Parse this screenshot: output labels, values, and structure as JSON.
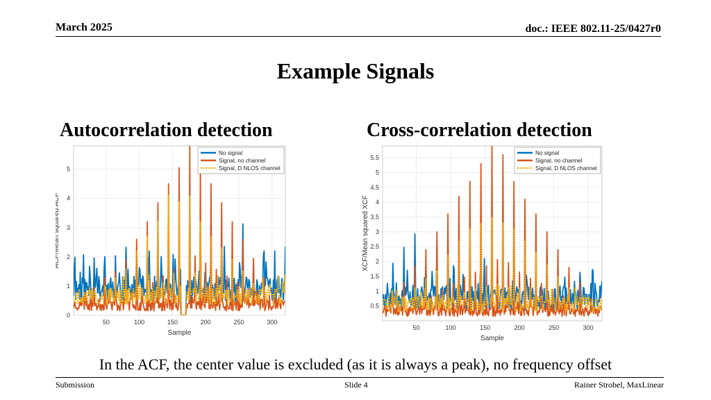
{
  "header": {
    "date": "March 2025",
    "doc": "doc.: IEEE 802.11-25/0427r0"
  },
  "slide": {
    "title": "Example Signals",
    "left_heading": "Autocorrelation detection",
    "right_heading": "Cross-correlation detection",
    "caption": "In the ACF, the center value is excluded (as it is always a peak), no frequency offset"
  },
  "footer": {
    "left": "Submission",
    "center": "Slide 4",
    "right": "Rainer Strobel, MaxLinear"
  },
  "colors": {
    "no_signal": "#0072BD",
    "signal_no_channel": "#D95319",
    "signal_nlos": "#EDB120"
  },
  "chart_data": [
    {
      "type": "line",
      "xlabel": "Sample",
      "ylabel": "ACF/Mean squared ACF",
      "xlim": [
        1,
        320
      ],
      "ylim": [
        0,
        5.8
      ],
      "xticks": [
        50,
        100,
        150,
        200,
        250,
        300
      ],
      "yticks": [
        0,
        1,
        2,
        3,
        4,
        5
      ],
      "grid": true,
      "legend_position": "top-right",
      "center_excluded": [
        163,
        170
      ],
      "series": [
        {
          "name": "No signal",
          "color": "#0072BD",
          "style": "solid",
          "base": 0.45,
          "noise": 0.9,
          "peak_scale": 0.35,
          "seed": 11
        },
        {
          "name": "Signal, no channel",
          "color": "#D95319",
          "style": "solid",
          "base": 0.15,
          "noise": 0.4,
          "peaks_x": [
            16,
            32,
            48,
            64,
            80,
            96,
            112,
            128,
            144,
            160,
            176,
            192,
            208,
            224,
            240,
            256,
            272,
            288,
            304
          ],
          "peaks_y": [
            0.65,
            0.95,
            1.3,
            1.5,
            1.9,
            2.6,
            3.2,
            3.85,
            4.5,
            5.05,
            5.8,
            5.1,
            4.5,
            3.85,
            3.2,
            2.6,
            1.95,
            1.3,
            0.9
          ],
          "seed": 23
        },
        {
          "name": "Signal, D NLOS channel",
          "color": "#EDB120",
          "style": "dotted",
          "base": 0.35,
          "noise": 0.6,
          "peaks_x": [
            16,
            32,
            48,
            64,
            80,
            96,
            112,
            128,
            144,
            160,
            176,
            192,
            208,
            224,
            240,
            256,
            272,
            288,
            304
          ],
          "peaks_y": [
            0.55,
            0.8,
            1.0,
            1.3,
            1.6,
            2.2,
            2.7,
            3.2,
            4.1,
            3.9,
            4.1,
            3.2,
            2.7,
            2.3,
            1.9,
            1.5,
            1.1,
            0.85,
            0.6
          ],
          "seed": 37
        }
      ]
    },
    {
      "type": "line",
      "xlabel": "Sample",
      "ylabel": "XCF/Mean squared XCF",
      "xlim": [
        1,
        320
      ],
      "ylim": [
        0,
        5.9
      ],
      "xticks": [
        50,
        100,
        150,
        200,
        250,
        300
      ],
      "yticks": [
        0.5,
        1,
        1.5,
        2,
        2.5,
        3,
        3.5,
        4,
        4.5,
        5,
        5.5
      ],
      "grid": true,
      "legend_position": "top-right",
      "series": [
        {
          "name": "No signal",
          "color": "#0072BD",
          "style": "solid",
          "base": 0.35,
          "noise": 0.85,
          "peak_scale": 0.3,
          "seed": 53
        },
        {
          "name": "Signal, no channel",
          "color": "#D95319",
          "style": "solid",
          "base": 0.15,
          "noise": 0.35,
          "peaks_x": [
            16,
            32,
            48,
            64,
            80,
            96,
            112,
            128,
            144,
            160,
            176,
            192,
            208,
            224,
            240,
            256,
            272,
            288,
            304
          ],
          "peaks_y": [
            0.9,
            1.3,
            1.85,
            2.4,
            3.0,
            3.6,
            4.2,
            4.7,
            5.3,
            5.9,
            5.6,
            4.7,
            4.1,
            3.6,
            3.0,
            2.4,
            1.8,
            1.3,
            0.75
          ],
          "seed": 71
        },
        {
          "name": "Signal, D NLOS channel",
          "color": "#EDB120",
          "style": "dotted",
          "base": 0.3,
          "noise": 0.55,
          "peaks_x": [
            16,
            32,
            48,
            64,
            80,
            96,
            112,
            128,
            144,
            160,
            176,
            192,
            208,
            224,
            240,
            256,
            272,
            288,
            304
          ],
          "peaks_y": [
            0.6,
            0.8,
            1.1,
            1.4,
            1.7,
            2.2,
            2.7,
            3.1,
            3.3,
            3.5,
            3.3,
            3.1,
            2.7,
            2.3,
            1.9,
            1.5,
            1.1,
            0.8,
            0.6
          ],
          "seed": 89
        }
      ]
    }
  ]
}
